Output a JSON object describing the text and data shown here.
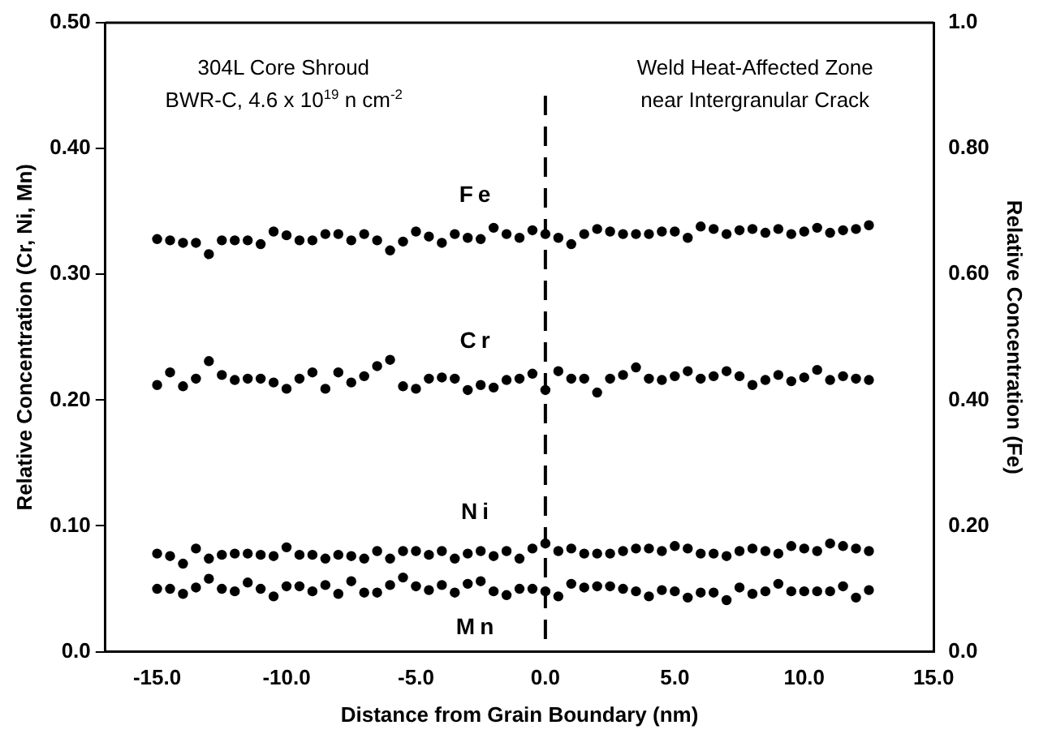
{
  "chart_data": {
    "type": "scatter",
    "xlabel": "Distance from Grain Boundary (nm)",
    "ylabel": "Relative Concentration (Cr, Ni, Mn)",
    "y2label": "Relative Concentration (Fe)",
    "annotations": [
      "304L Core Shroud",
      "BWR-C, 4.6 x 10$^{19}$ n cm$^{-2}$",
      "Weld Heat-Affected Zone\nnear Intergranular Crack"
    ],
    "x": [
      -15,
      -14.5,
      -14,
      -13.5,
      -13,
      -12.5,
      -12,
      -11.5,
      -11,
      -10.5,
      -10,
      -9.5,
      -9,
      -8.5,
      -8,
      -7.5,
      -7,
      -6.5,
      -6,
      -5.5,
      -5,
      -4.5,
      -4,
      -3.5,
      -3,
      -2.5,
      -2,
      -1.5,
      -1,
      -0.5,
      0,
      0.5,
      1,
      1.5,
      2,
      2.5,
      3,
      3.5,
      4,
      4.5,
      5,
      5.5,
      6,
      6.5,
      7,
      7.5,
      8,
      8.5,
      9,
      9.5,
      10,
      10.5,
      11,
      11.5,
      12,
      12.5
    ],
    "series": [
      {
        "name": "Fe",
        "color": "#000000",
        "axis": "y2",
        "values": [
          0.656,
          0.654,
          0.65,
          0.65,
          0.632,
          0.654,
          0.654,
          0.654,
          0.648,
          0.668,
          0.662,
          0.654,
          0.654,
          0.664,
          0.664,
          0.654,
          0.664,
          0.654,
          0.638,
          0.652,
          0.668,
          0.66,
          0.65,
          0.664,
          0.658,
          0.656,
          0.674,
          0.664,
          0.658,
          0.67,
          0.664,
          0.658,
          0.648,
          0.664,
          0.672,
          0.668,
          0.664,
          0.664,
          0.664,
          0.668,
          0.668,
          0.658,
          0.676,
          0.672,
          0.664,
          0.67,
          0.672,
          0.666,
          0.672,
          0.664,
          0.668,
          0.674,
          0.666,
          0.67,
          0.672,
          0.678
        ]
      },
      {
        "name": "Cr",
        "color": "#000000",
        "values": [
          0.212,
          0.222,
          0.211,
          0.217,
          0.231,
          0.22,
          0.216,
          0.217,
          0.217,
          0.214,
          0.209,
          0.217,
          0.222,
          0.209,
          0.222,
          0.214,
          0.219,
          0.227,
          0.232,
          0.211,
          0.209,
          0.217,
          0.218,
          0.217,
          0.208,
          0.212,
          0.21,
          0.216,
          0.217,
          0.221,
          0.208,
          0.223,
          0.217,
          0.217,
          0.206,
          0.217,
          0.22,
          0.226,
          0.217,
          0.216,
          0.219,
          0.223,
          0.217,
          0.219,
          0.223,
          0.219,
          0.212,
          0.216,
          0.22,
          0.215,
          0.218,
          0.224,
          0.216,
          0.219,
          0.217,
          0.216
        ]
      },
      {
        "name": "Ni",
        "color": "#000000",
        "values": [
          0.078,
          0.076,
          0.07,
          0.082,
          0.074,
          0.077,
          0.078,
          0.078,
          0.077,
          0.076,
          0.083,
          0.077,
          0.077,
          0.074,
          0.077,
          0.076,
          0.074,
          0.08,
          0.074,
          0.08,
          0.08,
          0.077,
          0.08,
          0.074,
          0.078,
          0.08,
          0.076,
          0.08,
          0.074,
          0.082,
          0.086,
          0.08,
          0.082,
          0.078,
          0.078,
          0.078,
          0.08,
          0.082,
          0.082,
          0.08,
          0.084,
          0.082,
          0.078,
          0.078,
          0.076,
          0.08,
          0.082,
          0.08,
          0.078,
          0.084,
          0.082,
          0.08,
          0.086,
          0.084,
          0.082,
          0.08
        ]
      },
      {
        "name": "Mn",
        "color": "#000000",
        "values": [
          0.05,
          0.05,
          0.046,
          0.051,
          0.058,
          0.05,
          0.048,
          0.055,
          0.05,
          0.044,
          0.052,
          0.052,
          0.048,
          0.053,
          0.046,
          0.056,
          0.047,
          0.047,
          0.053,
          0.059,
          0.052,
          0.049,
          0.053,
          0.047,
          0.054,
          0.056,
          0.048,
          0.045,
          0.05,
          0.05,
          0.048,
          0.044,
          0.054,
          0.051,
          0.052,
          0.052,
          0.05,
          0.048,
          0.044,
          0.049,
          0.048,
          0.043,
          0.047,
          0.047,
          0.041,
          0.051,
          0.046,
          0.048,
          0.054,
          0.048,
          0.048,
          0.048,
          0.048,
          0.052,
          0.043,
          0.049
        ]
      }
    ],
    "xlim": [
      -17,
      15
    ],
    "xticks": [
      {
        "value": -15,
        "label": "-15.0"
      },
      {
        "value": -10,
        "label": "-10.0"
      },
      {
        "value": -5,
        "label": "-5.0"
      },
      {
        "value": 0,
        "label": "0.0"
      },
      {
        "value": 5,
        "label": "5.0"
      },
      {
        "value": 10,
        "label": "10.0"
      },
      {
        "value": 15,
        "label": "15.0"
      }
    ],
    "ylim": [
      0,
      0.5
    ],
    "yticks": [
      {
        "value": 0,
        "label": "0.0"
      },
      {
        "value": 0.1,
        "label": "0.10"
      },
      {
        "value": 0.2,
        "label": "0.20"
      },
      {
        "value": 0.3,
        "label": "0.30"
      },
      {
        "value": 0.4,
        "label": "0.40"
      },
      {
        "value": 0.5,
        "label": "0.50"
      }
    ],
    "y2lim": [
      0,
      1
    ],
    "y2ticks": [
      {
        "value": 0,
        "label": "0.0"
      },
      {
        "value": 0.2,
        "label": "0.20"
      },
      {
        "value": 0.4,
        "label": "0.40"
      },
      {
        "value": 0.6,
        "label": "0.60"
      },
      {
        "value": 0.8,
        "label": "0.80"
      },
      {
        "value": 1,
        "label": "1.0"
      }
    ],
    "ref_lines": [
      {
        "axis": "x",
        "value": 0,
        "line_style": "dashed",
        "color": "#000000"
      }
    ],
    "marker": "circle",
    "grid": false,
    "legend": false
  }
}
